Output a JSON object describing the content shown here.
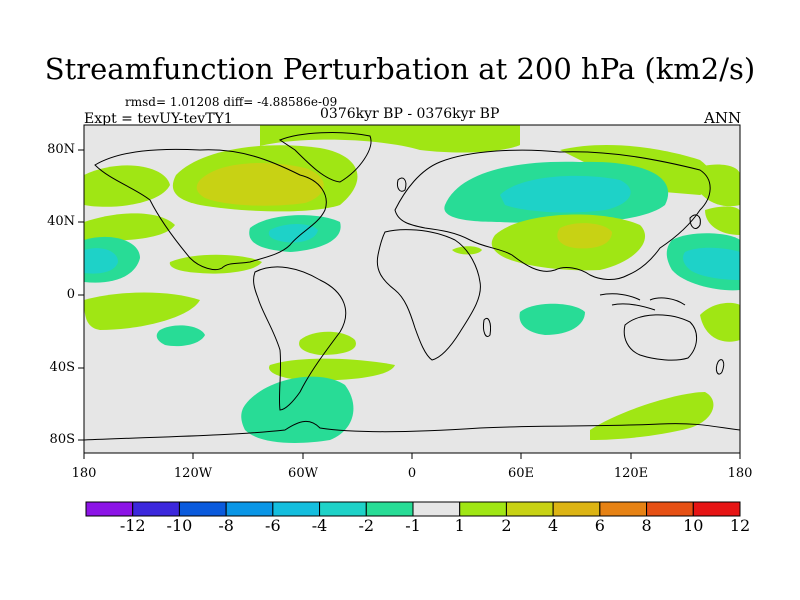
{
  "title": "Streamfunction Perturbation at 200 hPa (km2/s)",
  "subtitle_stats": "rmsd= 1.01208 diff= -4.88586e-09",
  "experiment": "Expt = tevUY-tevTY1",
  "period": "0376kyr BP - 0376kyr BP",
  "season": "ANN",
  "y_axis_labels": [
    "80N",
    "40N",
    "0",
    "40S",
    "80S"
  ],
  "x_axis_labels": [
    "180",
    "120W",
    "60W",
    "0",
    "60E",
    "120E",
    "180"
  ],
  "colorbar": {
    "labels": [
      "-12",
      "-10",
      "-8",
      "-6",
      "-4",
      "-2",
      "-1",
      "1",
      "2",
      "4",
      "6",
      "8",
      "10",
      "12"
    ],
    "colors": [
      "#8c14e6",
      "#3c28dc",
      "#0a5adc",
      "#0a96e6",
      "#14bede",
      "#1ed2c8",
      "#28dc96",
      "#e6e6e6",
      "#a0e614",
      "#c8d214",
      "#dcb414",
      "#e68214",
      "#e65014",
      "#e61414"
    ]
  },
  "chart_data": {
    "type": "heatmap",
    "title": "Streamfunction Perturbation at 200 hPa (km2/s)",
    "projection": "cylindrical equidistant",
    "lon_range": [
      -180,
      180
    ],
    "lat_range": [
      -90,
      90
    ],
    "contour_levels": [
      -12,
      -10,
      -8,
      -6,
      -4,
      -2,
      -1,
      1,
      2,
      4,
      6,
      8,
      10,
      12
    ],
    "features": [
      {
        "region": "North America / Canada",
        "sign": "positive",
        "peak_level": 4
      },
      {
        "region": "Tibetan Plateau / Central Asia",
        "sign": "positive",
        "peak_level": 4
      },
      {
        "region": "Arctic / North Atlantic high latitudes",
        "sign": "positive",
        "peak_level": 2
      },
      {
        "region": "Central Eurasia (around 40-60N, 30-120E)",
        "sign": "negative",
        "peak_level": -2
      },
      {
        "region": "North Pacific (western Pacific 20-40N)",
        "sign": "negative",
        "peak_level": -2
      },
      {
        "region": "Eastern North Pacific / Hawaii",
        "sign": "negative",
        "peak_level": -2
      },
      {
        "region": "Eastern US / western Atlantic",
        "sign": "negative",
        "peak_level": -2
      },
      {
        "region": "Southern Ocean south of South America",
        "sign": "negative",
        "peak_level": -1
      },
      {
        "region": "Southern Ocean south of Australia",
        "sign": "positive",
        "peak_level": 2
      },
      {
        "region": "Tropical east Pacific",
        "sign": "positive",
        "peak_level": 2
      }
    ]
  }
}
